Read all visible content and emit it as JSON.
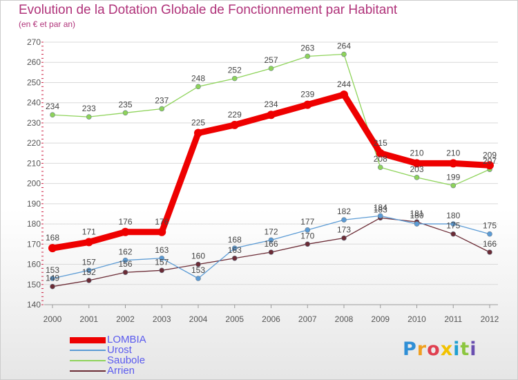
{
  "header": {
    "title": "Evolution de la Dotation Globale de Fonctionnement par Habitant",
    "subtitle": "(en € et par an)"
  },
  "logo": {
    "text": "Proxiti",
    "letters": [
      {
        "char": "P",
        "color": "#2f8fd6"
      },
      {
        "char": "r",
        "color": "#f0a020"
      },
      {
        "char": "o",
        "color": "#e04050"
      },
      {
        "char": "x",
        "color": "#f2c200"
      },
      {
        "char": "i",
        "color": "#20a0d0"
      },
      {
        "char": "t",
        "color": "#8cc63f"
      },
      {
        "char": "i",
        "color": "#6a4fb0"
      }
    ]
  },
  "colors": {
    "title": "#b0337a",
    "axis": "#555555",
    "grid": "#d9d9d9",
    "legend_text": "#5a5aee",
    "tick_mark": "#cc2244"
  },
  "chart_data": {
    "type": "line",
    "title": "Evolution de la Dotation Globale de Fonctionnement par Habitant",
    "subtitle": "(en € et par an)",
    "xlabel": "",
    "ylabel": "",
    "x": [
      "2000",
      "2001",
      "2002",
      "2003",
      "2004",
      "2005",
      "2006",
      "2007",
      "2008",
      "2009",
      "2010",
      "2011",
      "2012"
    ],
    "ylim": [
      140,
      270
    ],
    "yticks": [
      140,
      150,
      160,
      170,
      180,
      190,
      200,
      210,
      220,
      230,
      240,
      250,
      260,
      270
    ],
    "grid": true,
    "legend_position": "bottom-left",
    "series": [
      {
        "name": "LOMBIA",
        "color": "#ee0000",
        "width": 9,
        "marker_r": 6,
        "values": [
          168,
          171,
          176,
          176,
          225,
          229,
          234,
          239,
          244,
          215,
          210,
          210,
          209
        ]
      },
      {
        "name": "Urost",
        "color": "#5b9bd5",
        "width": 1.3,
        "marker_r": 3.5,
        "values": [
          153,
          157,
          162,
          163,
          153,
          168,
          172,
          177,
          182,
          184,
          180,
          180,
          175
        ]
      },
      {
        "name": "Saubole",
        "color": "#8ed35a",
        "width": 1.3,
        "marker_r": 3.5,
        "values": [
          234,
          233,
          235,
          237,
          248,
          252,
          257,
          263,
          264,
          208,
          203,
          199,
          207
        ]
      },
      {
        "name": "Arrien",
        "color": "#6b2b35",
        "width": 1.3,
        "marker_r": 3.5,
        "values": [
          149,
          152,
          156,
          157,
          160,
          163,
          166,
          170,
          173,
          183,
          181,
          175,
          166
        ]
      }
    ],
    "legend": [
      "LOMBIA",
      "Urost",
      "Saubole",
      "Arrien"
    ]
  }
}
